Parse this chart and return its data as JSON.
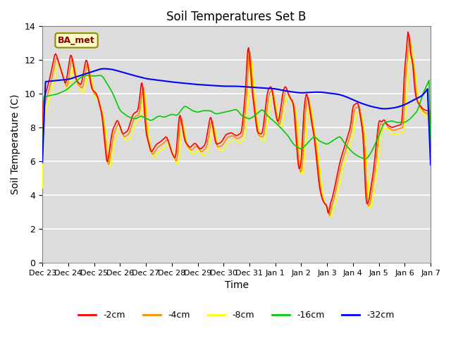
{
  "title": "Soil Temperatures Set B",
  "xlabel": "Time",
  "ylabel": "Soil Temperature (C)",
  "ylim": [
    0,
    14
  ],
  "yticks": [
    0,
    2,
    4,
    6,
    8,
    10,
    12,
    14
  ],
  "background_color": "#dcdcdc",
  "legend_label": "BA_met",
  "x_labels": [
    "Dec 23",
    "Dec 24",
    "Dec 25",
    "Dec 26",
    "Dec 27",
    "Dec 28",
    "Dec 29",
    "Dec 30",
    "Dec 31",
    "Jan 1",
    "Jan 2",
    "Jan 3",
    "Jan 4",
    "Jan 5",
    "Jan 6",
    "Jan 7"
  ],
  "series": {
    "-2cm": {
      "color": "#ff0000",
      "lw": 1.2
    },
    "-4cm": {
      "color": "#ff8800",
      "lw": 1.2
    },
    "-8cm": {
      "color": "#ffff00",
      "lw": 1.2
    },
    "-16cm": {
      "color": "#00cc00",
      "lw": 1.2
    },
    "-32cm": {
      "color": "#0000ff",
      "lw": 1.5
    }
  },
  "blue_keypoints": [
    [
      0.0,
      10.7
    ],
    [
      0.3,
      10.75
    ],
    [
      0.6,
      10.8
    ],
    [
      1.0,
      10.85
    ],
    [
      1.5,
      11.1
    ],
    [
      2.0,
      11.35
    ],
    [
      2.3,
      11.5
    ],
    [
      2.7,
      11.45
    ],
    [
      3.5,
      11.1
    ],
    [
      4.0,
      10.9
    ],
    [
      5.0,
      10.7
    ],
    [
      6.0,
      10.55
    ],
    [
      6.5,
      10.5
    ],
    [
      7.0,
      10.45
    ],
    [
      7.5,
      10.45
    ],
    [
      8.0,
      10.4
    ],
    [
      8.5,
      10.35
    ],
    [
      9.0,
      10.3
    ],
    [
      9.3,
      10.2
    ],
    [
      9.5,
      10.15
    ],
    [
      9.7,
      10.1
    ],
    [
      10.0,
      10.05
    ],
    [
      10.5,
      10.1
    ],
    [
      10.8,
      10.1
    ],
    [
      11.0,
      10.05
    ],
    [
      11.3,
      10.0
    ],
    [
      11.5,
      9.95
    ],
    [
      11.7,
      9.85
    ],
    [
      12.0,
      9.65
    ],
    [
      12.3,
      9.45
    ],
    [
      12.5,
      9.35
    ],
    [
      12.7,
      9.25
    ],
    [
      13.0,
      9.15
    ],
    [
      13.2,
      9.1
    ],
    [
      13.5,
      9.15
    ],
    [
      13.7,
      9.2
    ],
    [
      14.0,
      9.35
    ],
    [
      14.3,
      9.6
    ],
    [
      14.7,
      9.9
    ],
    [
      15.0,
      10.55
    ]
  ],
  "green_keypoints": [
    [
      0.0,
      9.8
    ],
    [
      0.3,
      9.9
    ],
    [
      0.6,
      10.0
    ],
    [
      0.9,
      10.2
    ],
    [
      1.2,
      10.6
    ],
    [
      1.5,
      11.0
    ],
    [
      1.7,
      11.1
    ],
    [
      2.0,
      11.05
    ],
    [
      2.3,
      11.1
    ],
    [
      2.5,
      10.6
    ],
    [
      2.7,
      10.1
    ],
    [
      3.0,
      9.0
    ],
    [
      3.3,
      8.65
    ],
    [
      3.6,
      8.5
    ],
    [
      3.8,
      8.7
    ],
    [
      4.0,
      8.55
    ],
    [
      4.2,
      8.4
    ],
    [
      4.5,
      8.7
    ],
    [
      4.7,
      8.6
    ],
    [
      5.0,
      8.8
    ],
    [
      5.2,
      8.7
    ],
    [
      5.5,
      9.3
    ],
    [
      5.8,
      9.0
    ],
    [
      6.0,
      8.9
    ],
    [
      6.2,
      9.0
    ],
    [
      6.5,
      9.0
    ],
    [
      6.7,
      8.8
    ],
    [
      7.0,
      8.9
    ],
    [
      7.3,
      9.0
    ],
    [
      7.5,
      9.1
    ],
    [
      7.7,
      8.7
    ],
    [
      8.0,
      8.5
    ],
    [
      8.2,
      8.7
    ],
    [
      8.5,
      9.1
    ],
    [
      8.7,
      8.7
    ],
    [
      9.0,
      8.3
    ],
    [
      9.2,
      8.0
    ],
    [
      9.5,
      7.5
    ],
    [
      9.7,
      7.0
    ],
    [
      10.0,
      6.7
    ],
    [
      10.2,
      7.0
    ],
    [
      10.5,
      7.5
    ],
    [
      10.7,
      7.2
    ],
    [
      11.0,
      7.0
    ],
    [
      11.2,
      7.2
    ],
    [
      11.5,
      7.5
    ],
    [
      11.7,
      7.0
    ],
    [
      12.0,
      6.5
    ],
    [
      12.2,
      6.3
    ],
    [
      12.5,
      6.1
    ],
    [
      12.7,
      6.5
    ],
    [
      13.0,
      7.5
    ],
    [
      13.2,
      8.3
    ],
    [
      13.5,
      8.4
    ],
    [
      13.7,
      8.3
    ],
    [
      14.0,
      8.3
    ],
    [
      14.2,
      8.5
    ],
    [
      14.5,
      9.0
    ],
    [
      14.7,
      10.0
    ],
    [
      15.0,
      11.0
    ]
  ]
}
